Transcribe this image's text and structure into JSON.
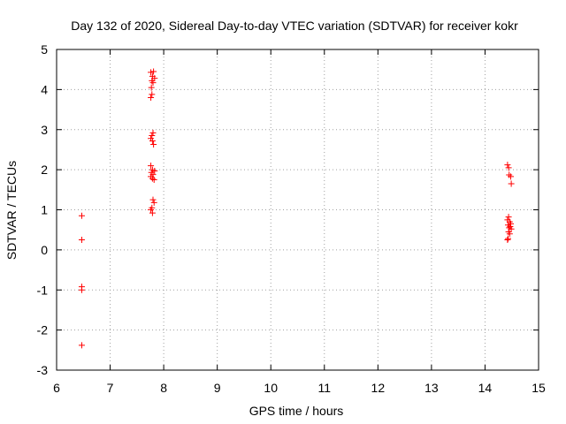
{
  "chart_data": {
    "type": "scatter",
    "title": "Day 132 of 2020, Sidereal Day-to-day VTEC variation (SDTVAR) for receiver kokr",
    "xlabel": "GPS time / hours",
    "ylabel": "SDTVAR / TECUs",
    "xlim": [
      6,
      15
    ],
    "ylim": [
      -3,
      5
    ],
    "xticks": [
      "6",
      "7",
      "8",
      "9",
      "10",
      "11",
      "12",
      "13",
      "14",
      "15"
    ],
    "yticks": [
      "-3",
      "-2",
      "-1",
      "0",
      "1",
      "2",
      "3",
      "4",
      "5"
    ],
    "grid": true,
    "marker": "+",
    "series": [
      {
        "name": "SDTVAR",
        "color": "#ff0000",
        "points": [
          [
            6.47,
            0.85
          ],
          [
            6.47,
            0.25
          ],
          [
            6.47,
            -0.92
          ],
          [
            6.47,
            -1.0
          ],
          [
            6.47,
            -2.38
          ],
          [
            7.76,
            4.43
          ],
          [
            7.81,
            4.45
          ],
          [
            7.79,
            4.33
          ],
          [
            7.83,
            4.28
          ],
          [
            7.78,
            4.22
          ],
          [
            7.8,
            4.17
          ],
          [
            7.77,
            4.05
          ],
          [
            7.78,
            3.88
          ],
          [
            7.76,
            3.8
          ],
          [
            7.8,
            2.92
          ],
          [
            7.78,
            2.85
          ],
          [
            7.76,
            2.78
          ],
          [
            7.79,
            2.72
          ],
          [
            7.81,
            2.63
          ],
          [
            7.76,
            2.1
          ],
          [
            7.79,
            2.0
          ],
          [
            7.83,
            1.97
          ],
          [
            7.77,
            1.93
          ],
          [
            7.8,
            1.88
          ],
          [
            7.76,
            1.83
          ],
          [
            7.79,
            1.78
          ],
          [
            7.82,
            1.75
          ],
          [
            7.8,
            1.25
          ],
          [
            7.82,
            1.18
          ],
          [
            7.78,
            1.05
          ],
          [
            7.76,
            1.0
          ],
          [
            7.79,
            0.92
          ],
          [
            14.42,
            2.12
          ],
          [
            14.44,
            2.05
          ],
          [
            14.45,
            1.87
          ],
          [
            14.48,
            1.83
          ],
          [
            14.49,
            1.65
          ],
          [
            14.44,
            0.82
          ],
          [
            14.42,
            0.75
          ],
          [
            14.46,
            0.7
          ],
          [
            14.48,
            0.65
          ],
          [
            14.43,
            0.62
          ],
          [
            14.47,
            0.58
          ],
          [
            14.45,
            0.55
          ],
          [
            14.49,
            0.52
          ],
          [
            14.44,
            0.45
          ],
          [
            14.46,
            0.4
          ],
          [
            14.43,
            0.28
          ],
          [
            14.42,
            0.25
          ]
        ]
      }
    ]
  }
}
